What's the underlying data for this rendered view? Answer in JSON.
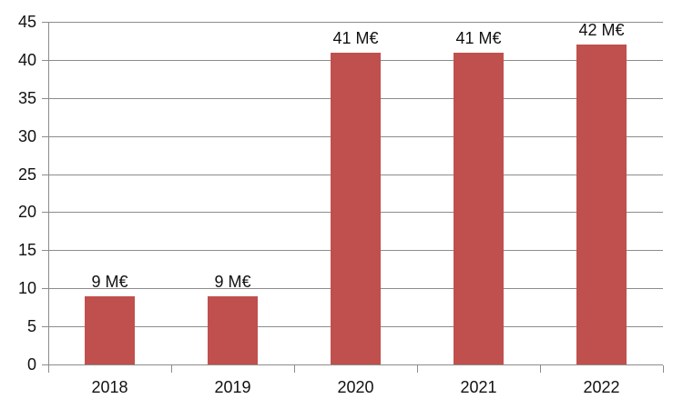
{
  "chart_data": {
    "type": "bar",
    "categories": [
      "2018",
      "2019",
      "2020",
      "2021",
      "2022"
    ],
    "values": [
      9,
      9,
      41,
      41,
      42
    ],
    "data_labels": [
      "9 M€",
      "9 M€",
      "41 M€",
      "41 M€",
      "42 M€"
    ],
    "ylim": [
      0,
      45
    ],
    "ytick_step": 5,
    "ytick_labels": [
      "0",
      "5",
      "10",
      "15",
      "20",
      "25",
      "30",
      "35",
      "40",
      "45"
    ],
    "grid": true,
    "legend": false,
    "bar_color": "#C0504D",
    "gridline_color": "#8C8C8C",
    "axis_color": "#8C8C8C",
    "text_color": "#111111",
    "background": "#FFFFFF"
  }
}
